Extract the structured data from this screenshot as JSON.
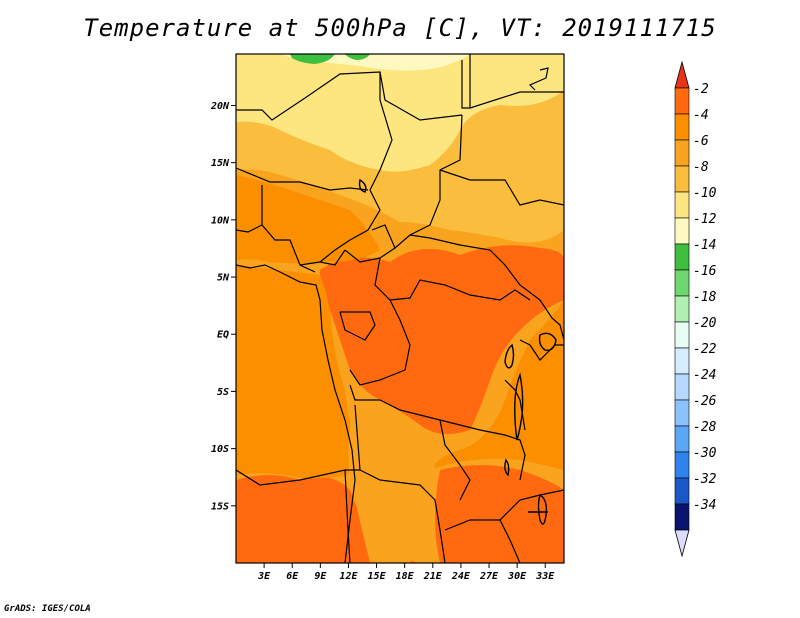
{
  "title": "Temperature at 500hPa [C], VT: 2019111715",
  "credit": "GrADS: IGES/COLA",
  "map": {
    "lon_range": [
      0,
      35
    ],
    "lat_range": [
      -20,
      24.5
    ],
    "lat_ticks": [
      {
        "value": 20,
        "label": "20N"
      },
      {
        "value": 15,
        "label": "15N"
      },
      {
        "value": 10,
        "label": "10N"
      },
      {
        "value": 5,
        "label": "5N"
      },
      {
        "value": 0,
        "label": "EQ"
      },
      {
        "value": -5,
        "label": "5S"
      },
      {
        "value": -10,
        "label": "10S"
      },
      {
        "value": -15,
        "label": "15S"
      }
    ],
    "lon_ticks": [
      {
        "value": 3,
        "label": "3E"
      },
      {
        "value": 6,
        "label": "6E"
      },
      {
        "value": 9,
        "label": "9E"
      },
      {
        "value": 12,
        "label": "12E"
      },
      {
        "value": 15,
        "label": "15E"
      },
      {
        "value": 18,
        "label": "18E"
      },
      {
        "value": 21,
        "label": "21E"
      },
      {
        "value": 24,
        "label": "24E"
      },
      {
        "value": 27,
        "label": "27E"
      },
      {
        "value": 30,
        "label": "30E"
      },
      {
        "value": 33,
        "label": "33E"
      }
    ]
  },
  "colorbar": {
    "levels": [
      {
        "label": "-2",
        "color": "#ff6a10"
      },
      {
        "label": "-4",
        "color": "#fb8f00"
      },
      {
        "label": "-6",
        "color": "#faa31f"
      },
      {
        "label": "-8",
        "color": "#fbbd3e"
      },
      {
        "label": "-10",
        "color": "#fde680"
      },
      {
        "label": "-12",
        "color": "#fef9c0"
      },
      {
        "label": "-14",
        "color": "#3ec03e"
      },
      {
        "label": "-16",
        "color": "#6ed86e"
      },
      {
        "label": "-18",
        "color": "#b0f0b0"
      },
      {
        "label": "-20",
        "color": "#e8fdf4"
      },
      {
        "label": "-22",
        "color": "#d6ecff"
      },
      {
        "label": "-24",
        "color": "#b4d8ff"
      },
      {
        "label": "-26",
        "color": "#8cc2fb"
      },
      {
        "label": "-28",
        "color": "#5aa6f7"
      },
      {
        "label": "-30",
        "color": "#2f83ec"
      },
      {
        "label": "-32",
        "color": "#1a58c8"
      },
      {
        "label": "-34",
        "color": "#0e2c9a"
      }
    ],
    "top_arrow_color": "#e8351a",
    "bottom_arrow_color": "#dcdcfa",
    "low_end_color": "#0a1470"
  }
}
